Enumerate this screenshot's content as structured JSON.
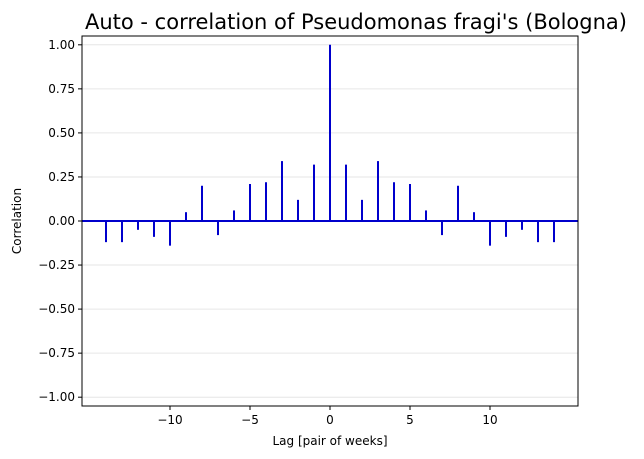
{
  "chart_data": {
    "type": "bar",
    "title": "Auto - correlation of Pseudomonas fragi's (Bologna)",
    "xlabel": "Lag [pair of weeks]",
    "ylabel": "Correlation",
    "xlim": [
      -15.5,
      15.5
    ],
    "ylim": [
      -1.05,
      1.05
    ],
    "xticks": [
      -10,
      -5,
      0,
      5,
      10
    ],
    "yticks": [
      -1.0,
      -0.75,
      -0.5,
      -0.25,
      0.0,
      0.25,
      0.5,
      0.75,
      1.0
    ],
    "ytick_labels": [
      "−1.00",
      "−0.75",
      "−0.50",
      "−0.25",
      "0.00",
      "0.25",
      "0.50",
      "0.75",
      "1.00"
    ],
    "xtick_labels": [
      "−10",
      "−5",
      "0",
      "5",
      "10"
    ],
    "grid": "y",
    "lags": [
      -14,
      -13,
      -12,
      -11,
      -10,
      -9,
      -8,
      -7,
      -6,
      -5,
      -4,
      -3,
      -2,
      -1,
      0,
      1,
      2,
      3,
      4,
      5,
      6,
      7,
      8,
      9,
      10,
      11,
      12,
      13,
      14
    ],
    "values": [
      -0.12,
      -0.12,
      -0.05,
      -0.09,
      -0.14,
      0.05,
      0.2,
      -0.08,
      0.06,
      0.21,
      0.22,
      0.34,
      0.12,
      0.32,
      1.0,
      0.32,
      0.12,
      0.34,
      0.22,
      0.21,
      0.06,
      -0.08,
      0.2,
      0.05,
      -0.14,
      -0.09,
      -0.05,
      -0.12,
      -0.12
    ],
    "bar_color": "#0000cc",
    "zero_line_color": "#0000cc"
  }
}
